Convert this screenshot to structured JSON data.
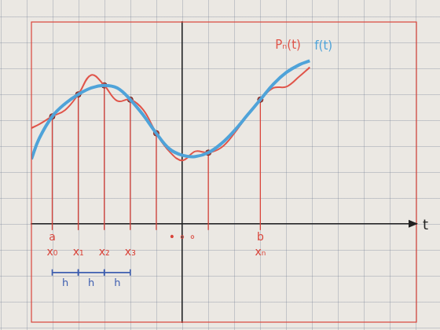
{
  "chart_data": {
    "type": "line",
    "x_label": "t",
    "xlim": [
      -5.8,
      9
    ],
    "ylim": [
      -3.8,
      7.8
    ],
    "xticks": [
      {
        "value": -5,
        "label": "x₀"
      },
      {
        "value": -4,
        "label": "x₁"
      },
      {
        "value": -3,
        "label": "x₂"
      },
      {
        "value": -2,
        "label": "x₃"
      },
      {
        "value": 3,
        "label": "xₙ"
      }
    ],
    "tick_labels": "x",
    "grid": false,
    "x": [
      -5.8,
      -5.5,
      -5,
      -4.5,
      -4,
      -3.5,
      -3,
      -2.5,
      -2,
      -1.5,
      -1,
      -0.5,
      0,
      0.5,
      1,
      1.5,
      2,
      2.5,
      3,
      3.5,
      4,
      4.5,
      4.9
    ],
    "series": [
      {
        "name": "f(t)",
        "color": "#4fa3d9",
        "values": [
          2.5,
          3.3,
          4.15,
          4.65,
          5.0,
          5.25,
          5.35,
          5.25,
          4.8,
          4.2,
          3.5,
          2.9,
          2.65,
          2.6,
          2.75,
          3.1,
          3.6,
          4.2,
          4.8,
          5.4,
          5.85,
          6.15,
          6.3
        ]
      },
      {
        "name": "Pₙ(t)",
        "color": "#e0554a",
        "values": [
          3.7,
          3.85,
          4.15,
          4.4,
          5.0,
          5.75,
          5.35,
          4.75,
          4.8,
          4.4,
          3.5,
          2.8,
          2.45,
          2.8,
          2.75,
          2.95,
          3.5,
          4.2,
          4.8,
          5.25,
          5.3,
          5.7,
          6.05
        ]
      }
    ],
    "nodes": {
      "x": [
        -5,
        -4,
        -3,
        -2,
        -1,
        1,
        3
      ],
      "y": [
        4.15,
        5.0,
        5.35,
        4.8,
        3.5,
        2.75,
        4.8
      ]
    },
    "annotations": [
      {
        "text": "a",
        "x": -5
      },
      {
        "text": "b",
        "x": 3
      },
      {
        "text": "• ∘ ∘",
        "x": 0
      }
    ],
    "spacing": {
      "label": "h",
      "intervals": [
        [
          -5,
          -4
        ],
        [
          -4,
          -3
        ],
        [
          -3,
          -2
        ]
      ]
    }
  }
}
